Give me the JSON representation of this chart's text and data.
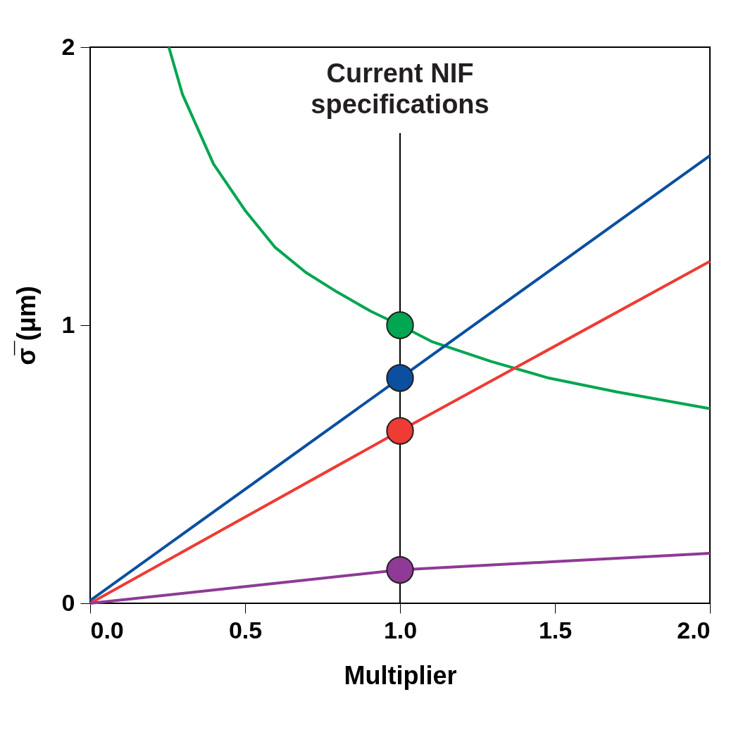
{
  "chart_data": {
    "type": "line",
    "xlabel": "Multiplier",
    "ylabel": "σ̅ (μm)",
    "xlim": [
      0,
      2
    ],
    "ylim": [
      0,
      2
    ],
    "xticks": [
      {
        "value": 0,
        "label": "0.0"
      },
      {
        "value": 0.5,
        "label": "0.5"
      },
      {
        "value": 1,
        "label": "1.0"
      },
      {
        "value": 1.5,
        "label": "1.5"
      },
      {
        "value": 2,
        "label": "2.0"
      }
    ],
    "yticks": [
      0,
      1,
      2
    ],
    "grid": false,
    "line_style": "solid",
    "marker": "none",
    "series": [
      {
        "color": "#00a651",
        "x": [
          0.254,
          0.298,
          0.398,
          0.502,
          0.597,
          0.696,
          0.796,
          0.906,
          1.0,
          1.105,
          1.293,
          1.48,
          1.7,
          2.0
        ],
        "values": [
          2.0,
          1.83,
          1.58,
          1.41,
          1.28,
          1.19,
          1.12,
          1.05,
          1.0,
          0.94,
          0.87,
          0.81,
          0.76,
          0.7
        ]
      },
      {
        "color": "#0b4fa0",
        "x": [
          0,
          1,
          2
        ],
        "values": [
          0.01,
          0.81,
          1.61
        ]
      },
      {
        "color": "#ee3b33",
        "x": [
          0,
          1,
          2
        ],
        "values": [
          0,
          0.62,
          1.23
        ]
      },
      {
        "color": "#8e3a96",
        "x": [
          0,
          0.5,
          1,
          1.5,
          2
        ],
        "values": [
          0,
          0.06,
          0.12,
          0.15,
          0.18
        ]
      },
      {
        "type": "scatter",
        "marker": "circle",
        "x": [
          1,
          1,
          1,
          1
        ],
        "values": [
          1.0,
          0.81,
          0.62,
          0.12
        ],
        "colors": [
          "#00a651",
          "#0b4fa0",
          "#ee3b33",
          "#8e3a96"
        ]
      }
    ],
    "ref_lines": [
      {
        "axis": "x",
        "value": 1,
        "label": "Current NIF\nspecifications",
        "color": "#000000"
      }
    ]
  }
}
